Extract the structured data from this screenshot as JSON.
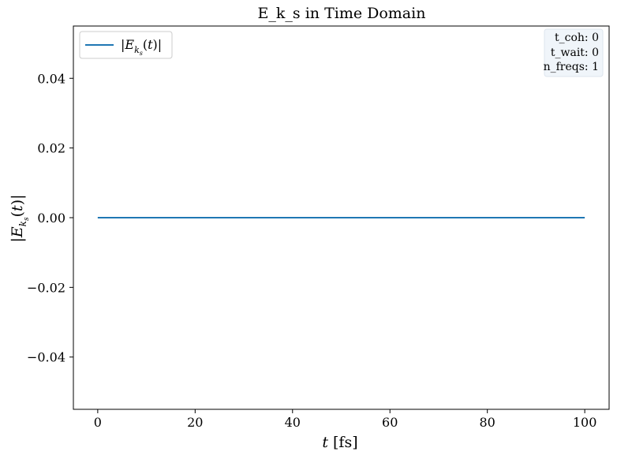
{
  "chart_data": {
    "type": "line",
    "title": "E_k_s in Time Domain",
    "xlabel": "t [fs]",
    "ylabel": "|E_{k_s}(t)|",
    "xlim": [
      -5,
      105
    ],
    "ylim": [
      -0.055,
      0.055
    ],
    "x_ticks": [
      0,
      20,
      40,
      60,
      80,
      100
    ],
    "x_tick_labels": [
      "0",
      "20",
      "40",
      "60",
      "80",
      "100"
    ],
    "y_ticks": [
      0.04,
      0.02,
      0.0,
      -0.02,
      -0.04
    ],
    "y_tick_labels": [
      "0.04",
      "0.02",
      "0.00",
      "−0.02",
      "−0.04"
    ],
    "grid": false,
    "legend_placement": "upper-left",
    "series": [
      {
        "name": "|E_{k_s}(t)|",
        "color": "#1f77b4",
        "x": [
          0,
          100
        ],
        "y": [
          0.0,
          0.0
        ]
      }
    ],
    "annotation": {
      "placement": "upper-right",
      "lines": [
        "t_coh: 0",
        "t_wait: 0",
        "n_freqs: 1"
      ]
    }
  }
}
